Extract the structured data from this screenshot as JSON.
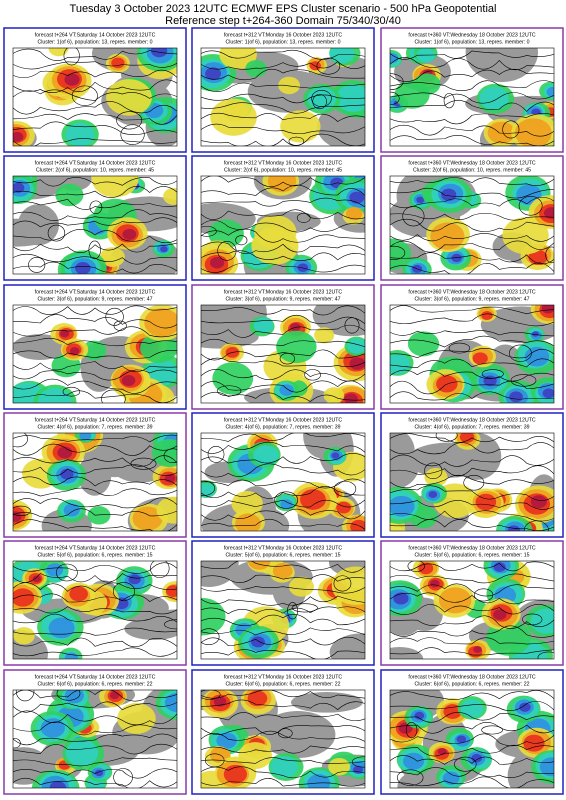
{
  "header": {
    "title": "Tuesday 3 October 2023 12UTC ECMWF EPS Cluster scenario - 500 hPa Geopotential",
    "subtitle": "Reference step t+264-360 Domain 75/340/30/40"
  },
  "panels": [
    [
      {
        "forecast": "forecast t+264 VT:Saturday 14 October 2023 12UTC",
        "cluster": "Cluster: 1(of 6), population: 13, repres. member: 0",
        "border": "#2020c0"
      },
      {
        "forecast": "forecast t+312 VT:Monday 16 October 2023 12UTC",
        "cluster": "Cluster: 1(of 6), population: 13, repres. member: 0",
        "border": "#2020c0"
      },
      {
        "forecast": "forecast t+360 VT:Wednesday 18 October 2023 12UTC",
        "cluster": "Cluster: 1(of 6), population: 13, repres. member: 0",
        "border": "#8a3aa8"
      }
    ],
    [
      {
        "forecast": "forecast t+264 VT:Saturday 14 October 2023 12UTC",
        "cluster": "Cluster: 2(of 6), population: 10, repres. member: 45",
        "border": "#2020c0"
      },
      {
        "forecast": "forecast t+312 VT:Monday 16 October 2023 12UTC",
        "cluster": "Cluster: 2(of 6), population: 10, repres. member: 45",
        "border": "#2020c0"
      },
      {
        "forecast": "forecast t+360 VT:Wednesday 18 October 2023 12UTC",
        "cluster": "Cluster: 2(of 6), population: 10, repres. member: 45",
        "border": "#8a3aa8"
      }
    ],
    [
      {
        "forecast": "forecast t+264 VT:Saturday 14 October 2023 12UTC",
        "cluster": "Cluster: 3(of 6), population: 9, repres. member: 47",
        "border": "#2020c0"
      },
      {
        "forecast": "forecast t+312 VT:Monday 16 October 2023 12UTC",
        "cluster": "Cluster: 3(of 6), population: 9, repres. member: 47",
        "border": "#8a3aa8"
      },
      {
        "forecast": "forecast t+360 VT:Wednesday 18 October 2023 12UTC",
        "cluster": "Cluster: 3(of 6), population: 9, repres. member: 47",
        "border": "#8a3aa8"
      }
    ],
    [
      {
        "forecast": "forecast t+264 VT:Saturday 14 October 2023 12UTC",
        "cluster": "Cluster: 4(of 6), population: 7, repres. member: 39",
        "border": "#8a3aa8"
      },
      {
        "forecast": "forecast t+312 VT:Monday 16 October 2023 12UTC",
        "cluster": "Cluster: 4(of 6), population: 7, repres. member: 39",
        "border": "#2020c0"
      },
      {
        "forecast": "forecast t+360 VT:Wednesday 18 October 2023 12UTC",
        "cluster": "Cluster: 4(of 6), population: 7, repres. member: 39",
        "border": "#2020c0"
      }
    ],
    [
      {
        "forecast": "forecast t+264 VT:Saturday 14 October 2023 12UTC",
        "cluster": "Cluster: 5(of 6), population: 6, repres. member: 15",
        "border": "#8a3aa8"
      },
      {
        "forecast": "forecast t+312 VT:Monday 16 October 2023 12UTC",
        "cluster": "Cluster: 5(of 6), population: 6, repres. member: 15",
        "border": "#2020c0"
      },
      {
        "forecast": "forecast t+360 VT:Wednesday 18 October 2023 12UTC",
        "cluster": "Cluster: 5(of 6), population: 6, repres. member: 15",
        "border": "#8a3aa8"
      }
    ],
    [
      {
        "forecast": "forecast t+264 VT:Saturday 14 October 2023 12UTC",
        "cluster": "Cluster: 6(of 6), population: 6, repres. member: 22",
        "border": "#8a3aa8"
      },
      {
        "forecast": "forecast t+312 VT:Monday 16 October 2023 12UTC",
        "cluster": "Cluster: 6(of 6), population: 6, repres. member: 22",
        "border": "#2020c0"
      },
      {
        "forecast": "forecast t+360 VT:Wednesday 18 October 2023 12UTC",
        "cluster": "Cluster: 6(of 6), population: 6, repres. member: 22",
        "border": "#2020c0"
      }
    ]
  ]
}
